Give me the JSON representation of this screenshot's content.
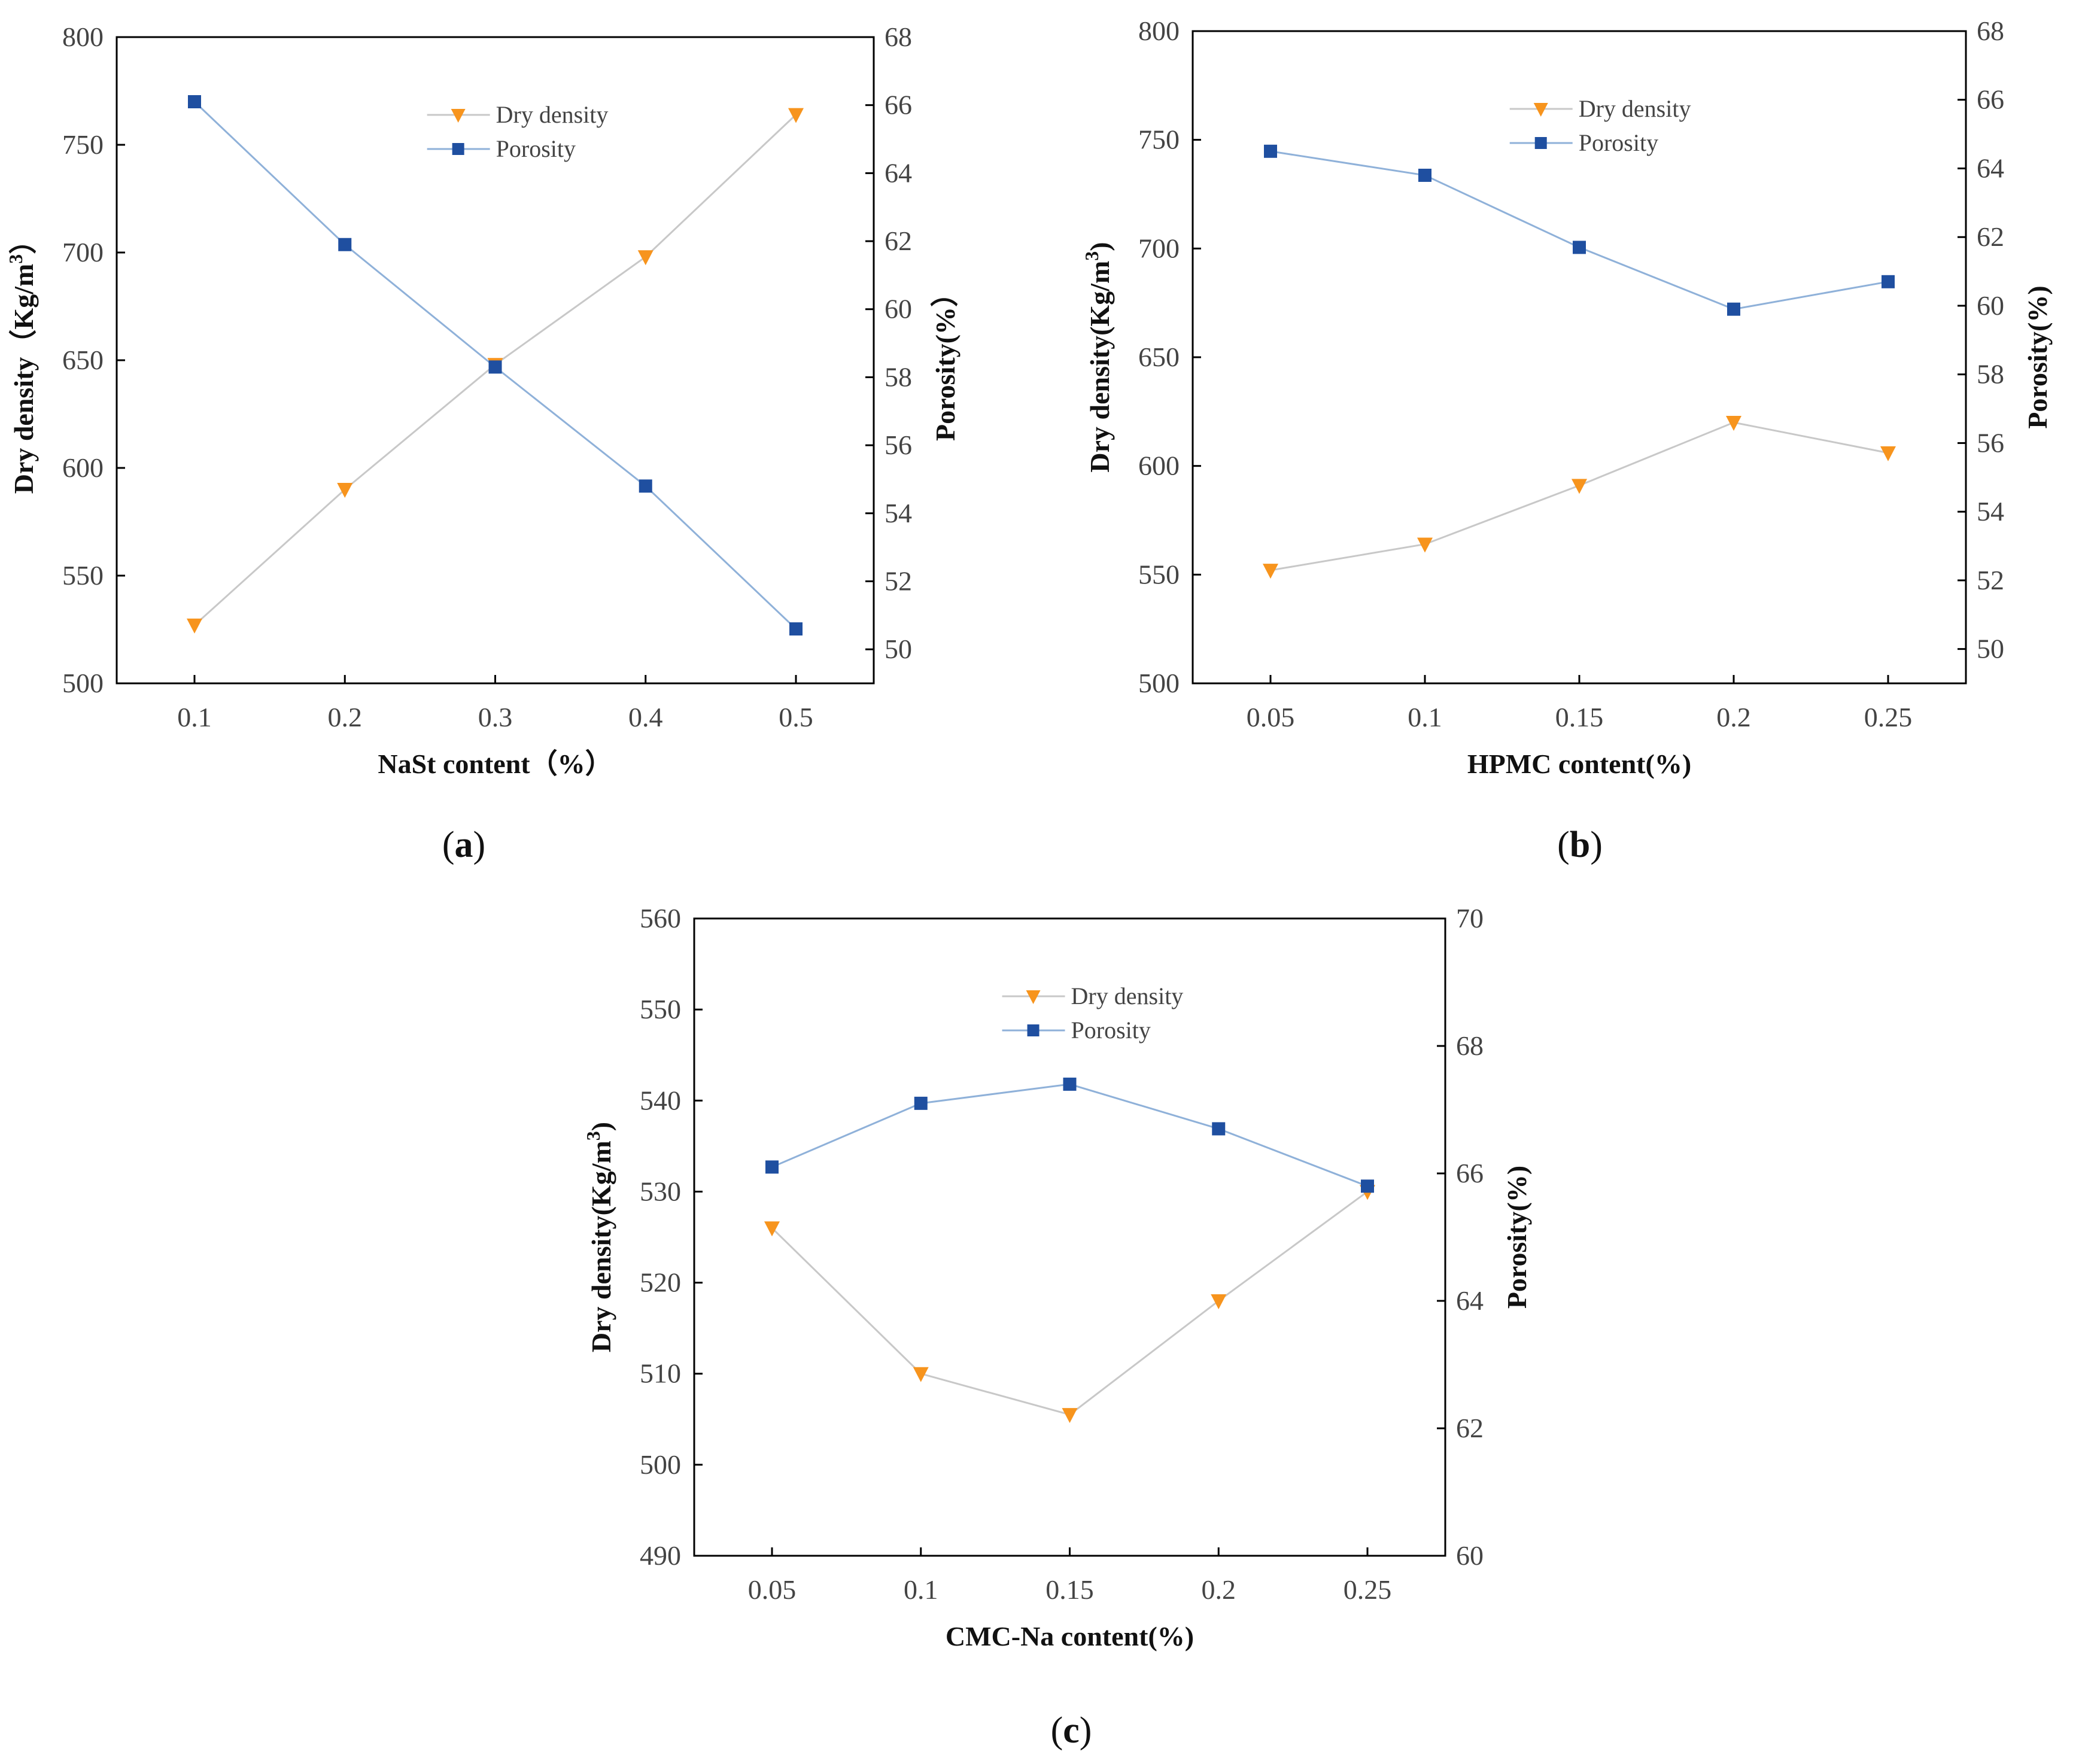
{
  "figure": {
    "colors": {
      "dry_density_marker": "#f7941d",
      "dry_density_line": "#c8c8c8",
      "porosity_marker": "#1f4fa0",
      "porosity_line": "#8fb1d9",
      "axis": "#000000"
    }
  },
  "chart_data": [
    {
      "type": "line",
      "panel_label_pre": "(",
      "panel_label_letter": "a",
      "panel_label_post": ")",
      "categories": [
        "0.1",
        "0.2",
        "0.3",
        "0.4",
        "0.5"
      ],
      "x": [
        0.1,
        0.2,
        0.3,
        0.4,
        0.5
      ],
      "xlabel": "NaSt content（%）",
      "ylabel": "Dry density（Kg/m",
      "ylabel_sup": "3",
      "ylabel_post": "）",
      "y2label": "Porosity(%）",
      "ylim": [
        500,
        800
      ],
      "yticks": [
        500,
        550,
        600,
        650,
        700,
        750,
        800
      ],
      "y2lim": [
        49,
        68
      ],
      "y2ticks": [
        50,
        52,
        54,
        56,
        58,
        60,
        62,
        64,
        66,
        68
      ],
      "legend_position": "top-center",
      "series": [
        {
          "name": "Dry density",
          "axis": "left",
          "marker": "triangle-down",
          "values": [
            527,
            590,
            648,
            698,
            764
          ]
        },
        {
          "name": "Porosity",
          "axis": "right",
          "marker": "square",
          "values": [
            66.1,
            61.9,
            58.3,
            54.8,
            50.6
          ]
        }
      ]
    },
    {
      "type": "line",
      "panel_label_pre": "(",
      "panel_label_letter": "b",
      "panel_label_post": ")",
      "categories": [
        "0.05",
        "0.1",
        "0.15",
        "0.2",
        "0.25"
      ],
      "x": [
        0.05,
        0.1,
        0.15,
        0.2,
        0.25
      ],
      "xlabel": "HPMC content(%)",
      "ylabel": "Dry density(Kg/m",
      "ylabel_sup": "3",
      "ylabel_post": ")",
      "y2label": "Porosity(%)",
      "ylim": [
        500,
        800
      ],
      "yticks": [
        500,
        550,
        600,
        650,
        700,
        750,
        800
      ],
      "y2lim": [
        49,
        68
      ],
      "y2ticks": [
        50,
        52,
        54,
        56,
        58,
        60,
        62,
        64,
        66,
        68
      ],
      "legend_position": "top-center",
      "series": [
        {
          "name": "Dry density",
          "axis": "left",
          "marker": "triangle-down",
          "values": [
            552,
            564,
            591,
            620,
            606
          ]
        },
        {
          "name": "Porosity",
          "axis": "right",
          "marker": "square",
          "values": [
            64.5,
            63.8,
            61.7,
            59.9,
            60.7
          ]
        }
      ]
    },
    {
      "type": "line",
      "panel_label_pre": "(",
      "panel_label_letter": "c",
      "panel_label_post": ")",
      "categories": [
        "0.05",
        "0.1",
        "0.15",
        "0.2",
        "0.25"
      ],
      "x": [
        0.05,
        0.1,
        0.15,
        0.2,
        0.25
      ],
      "xlabel": "CMC-Na content(%)",
      "ylabel": "Dry density(Kg/m",
      "ylabel_sup": "3",
      "ylabel_post": ")",
      "y2label": "Porosity(%)",
      "ylim": [
        490,
        560
      ],
      "yticks": [
        490,
        500,
        510,
        520,
        530,
        540,
        550,
        560
      ],
      "y2lim": [
        60,
        70
      ],
      "y2ticks": [
        60,
        62,
        64,
        66,
        68,
        70
      ],
      "legend_position": "top-center",
      "series": [
        {
          "name": "Dry density",
          "axis": "left",
          "marker": "triangle-down",
          "values": [
            526,
            510,
            505.5,
            518,
            530
          ]
        },
        {
          "name": "Porosity",
          "axis": "right",
          "marker": "square",
          "values": [
            66.1,
            67.1,
            67.4,
            66.7,
            65.8
          ]
        }
      ]
    }
  ]
}
